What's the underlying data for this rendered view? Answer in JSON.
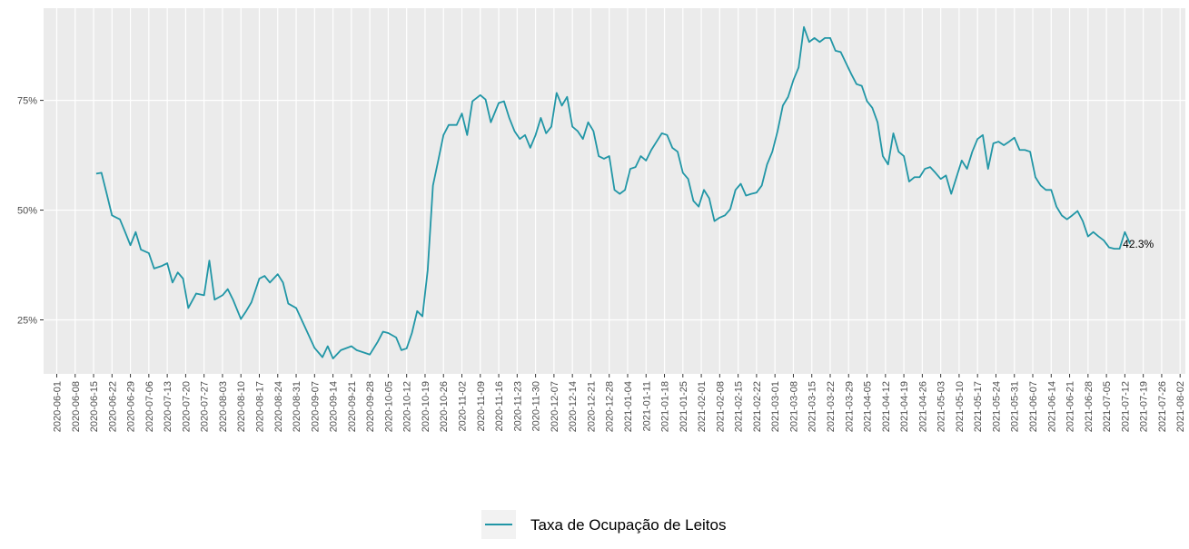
{
  "chart_data": {
    "type": "line",
    "legend_label": "Taxa de Ocupação de Leitos",
    "legend_position": "bottom",
    "grid": true,
    "xlim": [
      "2020-05-27",
      "2021-08-04"
    ],
    "ylim": [
      12.7,
      96
    ],
    "yticks": [
      {
        "value": 25,
        "label": "25%"
      },
      {
        "value": 50,
        "label": "50%"
      },
      {
        "value": 75,
        "label": "75%"
      }
    ],
    "xticks": [
      "2020-06-01",
      "2020-06-08",
      "2020-06-15",
      "2020-06-22",
      "2020-06-29",
      "2020-07-06",
      "2020-07-13",
      "2020-07-20",
      "2020-07-27",
      "2020-08-03",
      "2020-08-10",
      "2020-08-17",
      "2020-08-24",
      "2020-08-31",
      "2020-09-07",
      "2020-09-14",
      "2020-09-21",
      "2020-09-28",
      "2020-10-05",
      "2020-10-12",
      "2020-10-19",
      "2020-10-26",
      "2020-11-02",
      "2020-11-09",
      "2020-11-16",
      "2020-11-23",
      "2020-11-30",
      "2020-12-07",
      "2020-12-14",
      "2020-12-21",
      "2020-12-28",
      "2021-01-04",
      "2021-01-11",
      "2021-01-18",
      "2021-01-25",
      "2021-02-01",
      "2021-02-08",
      "2021-02-15",
      "2021-02-22",
      "2021-03-01",
      "2021-03-08",
      "2021-03-15",
      "2021-03-22",
      "2021-03-29",
      "2021-04-05",
      "2021-04-12",
      "2021-04-19",
      "2021-04-26",
      "2021-05-03",
      "2021-05-10",
      "2021-05-17",
      "2021-05-24",
      "2021-05-31",
      "2021-06-07",
      "2021-06-14",
      "2021-06-21",
      "2021-06-28",
      "2021-07-05",
      "2021-07-12",
      "2021-07-19",
      "2021-07-26",
      "2021-08-02"
    ],
    "x": [
      "2020-06-16",
      "2020-06-18",
      "2020-06-20",
      "2020-06-22",
      "2020-06-25",
      "2020-06-27",
      "2020-06-29",
      "2020-07-01",
      "2020-07-03",
      "2020-07-06",
      "2020-07-08",
      "2020-07-11",
      "2020-07-13",
      "2020-07-15",
      "2020-07-17",
      "2020-07-19",
      "2020-07-21",
      "2020-07-24",
      "2020-07-27",
      "2020-07-29",
      "2020-07-31",
      "2020-08-03",
      "2020-08-05",
      "2020-08-07",
      "2020-08-10",
      "2020-08-12",
      "2020-08-14",
      "2020-08-17",
      "2020-08-19",
      "2020-08-21",
      "2020-08-24",
      "2020-08-26",
      "2020-08-28",
      "2020-08-31",
      "2020-09-03",
      "2020-09-07",
      "2020-09-10",
      "2020-09-12",
      "2020-09-14",
      "2020-09-17",
      "2020-09-21",
      "2020-09-23",
      "2020-09-26",
      "2020-09-28",
      "2020-10-01",
      "2020-10-03",
      "2020-10-05",
      "2020-10-08",
      "2020-10-10",
      "2020-10-12",
      "2020-10-14",
      "2020-10-16",
      "2020-10-18",
      "2020-10-20",
      "2020-10-22",
      "2020-10-24",
      "2020-10-26",
      "2020-10-28",
      "2020-10-31",
      "2020-11-02",
      "2020-11-04",
      "2020-11-06",
      "2020-11-09",
      "2020-11-11",
      "2020-11-13",
      "2020-11-16",
      "2020-11-18",
      "2020-11-20",
      "2020-11-22",
      "2020-11-24",
      "2020-11-26",
      "2020-11-28",
      "2020-11-30",
      "2020-12-02",
      "2020-12-04",
      "2020-12-06",
      "2020-12-08",
      "2020-12-10",
      "2020-12-12",
      "2020-12-14",
      "2020-12-16",
      "2020-12-18",
      "2020-12-20",
      "2020-12-22",
      "2020-12-24",
      "2020-12-26",
      "2020-12-28",
      "2020-12-30",
      "2021-01-01",
      "2021-01-03",
      "2021-01-05",
      "2021-01-07",
      "2021-01-09",
      "2021-01-11",
      "2021-01-13",
      "2021-01-15",
      "2021-01-17",
      "2021-01-19",
      "2021-01-21",
      "2021-01-23",
      "2021-01-25",
      "2021-01-27",
      "2021-01-29",
      "2021-01-31",
      "2021-02-02",
      "2021-02-04",
      "2021-02-06",
      "2021-02-08",
      "2021-02-10",
      "2021-02-12",
      "2021-02-14",
      "2021-02-16",
      "2021-02-18",
      "2021-02-20",
      "2021-02-22",
      "2021-02-24",
      "2021-02-26",
      "2021-02-28",
      "2021-03-02",
      "2021-03-04",
      "2021-03-06",
      "2021-03-08",
      "2021-03-10",
      "2021-03-12",
      "2021-03-14",
      "2021-03-16",
      "2021-03-18",
      "2021-03-20",
      "2021-03-22",
      "2021-03-24",
      "2021-03-26",
      "2021-03-28",
      "2021-03-30",
      "2021-04-01",
      "2021-04-03",
      "2021-04-05",
      "2021-04-07",
      "2021-04-09",
      "2021-04-11",
      "2021-04-13",
      "2021-04-15",
      "2021-04-17",
      "2021-04-19",
      "2021-04-21",
      "2021-04-23",
      "2021-04-25",
      "2021-04-27",
      "2021-04-29",
      "2021-05-01",
      "2021-05-03",
      "2021-05-05",
      "2021-05-07",
      "2021-05-09",
      "2021-05-11",
      "2021-05-13",
      "2021-05-15",
      "2021-05-17",
      "2021-05-19",
      "2021-05-21",
      "2021-05-23",
      "2021-05-25",
      "2021-05-27",
      "2021-05-29",
      "2021-05-31",
      "2021-06-02",
      "2021-06-04",
      "2021-06-06",
      "2021-06-08",
      "2021-06-10",
      "2021-06-12",
      "2021-06-14",
      "2021-06-16",
      "2021-06-18",
      "2021-06-20",
      "2021-06-22",
      "2021-06-24",
      "2021-06-26",
      "2021-06-28",
      "2021-06-30",
      "2021-07-02",
      "2021-07-04",
      "2021-07-06",
      "2021-07-08",
      "2021-07-10",
      "2021-07-12",
      "2021-07-14"
    ],
    "series": [
      {
        "name": "Taxa de Ocupação de Leitos",
        "color": "#2196a6",
        "values": [
          58.3,
          58.5,
          53.7,
          48.8,
          47.9,
          45,
          42,
          45,
          41,
          40.2,
          36.7,
          37.3,
          37.9,
          33.5,
          35.8,
          34.4,
          27.7,
          31,
          30.6,
          38.5,
          29.6,
          30.6,
          32,
          29.6,
          25.2,
          27,
          29,
          34.4,
          35,
          33.5,
          35.4,
          33.5,
          28.7,
          27.7,
          23.8,
          18.6,
          16.5,
          19,
          16.2,
          18.1,
          19,
          18.1,
          17.5,
          17.1,
          20,
          22.3,
          22,
          21,
          18.1,
          18.5,
          22,
          27,
          25.8,
          36.3,
          55.6,
          61.3,
          67.1,
          69.4,
          69.4,
          72,
          67.1,
          74.8,
          76.2,
          75.2,
          70,
          74.4,
          74.8,
          71,
          68,
          66.2,
          67.1,
          64.2,
          67.1,
          71,
          67.5,
          69,
          76.7,
          73.8,
          75.8,
          69,
          68,
          66.2,
          70,
          68,
          62.3,
          61.7,
          62.3,
          54.6,
          53.7,
          54.6,
          59.4,
          59.8,
          62.3,
          61.3,
          63.7,
          65.6,
          67.5,
          67.1,
          64.2,
          63.3,
          58.5,
          57.1,
          52.1,
          50.8,
          54.6,
          52.7,
          47.5,
          48.3,
          48.8,
          50.2,
          54.6,
          56,
          53.3,
          53.7,
          54,
          55.6,
          60.4,
          63.3,
          68,
          73.8,
          75.8,
          79.6,
          82.5,
          91.7,
          88.3,
          89.2,
          88.3,
          89.2,
          89.2,
          86.3,
          86,
          83.5,
          81,
          78.7,
          78.3,
          74.8,
          73.3,
          70,
          62.3,
          60.4,
          67.5,
          63.3,
          62.3,
          56.5,
          57.5,
          57.5,
          59.4,
          59.8,
          58.5,
          57.1,
          57.9,
          53.7,
          57.5,
          61.3,
          59.4,
          63.3,
          66.2,
          67.1,
          59.4,
          65.2,
          65.6,
          64.8,
          65.6,
          66.5,
          63.7,
          63.7,
          63.3,
          57.5,
          55.6,
          54.6,
          54.6,
          50.8,
          48.8,
          47.9,
          48.8,
          49.8,
          47.5,
          44,
          45,
          44,
          43.1,
          41.5,
          41.2,
          41.2,
          45,
          42.3
        ]
      }
    ],
    "annotations": [
      {
        "x": "2021-07-14",
        "y": 42.3,
        "text": "42.3%"
      }
    ]
  }
}
